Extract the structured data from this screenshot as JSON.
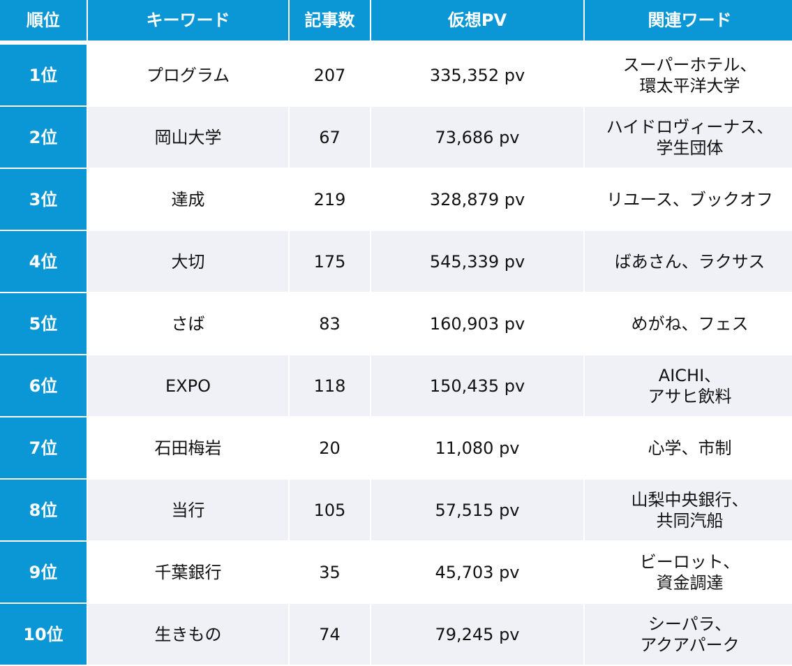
{
  "headers": {
    "rank": "順位",
    "keyword": "キーワード",
    "articles": "記事数",
    "pv": "仮想PV",
    "related": "関連ワード"
  },
  "rows": [
    {
      "rank": "1位",
      "keyword": "プログラム",
      "articles": "207",
      "pv": "335,352 pv",
      "related": "スーパーホテル、\n環太平洋大学"
    },
    {
      "rank": "2位",
      "keyword": "岡山大学",
      "articles": "67",
      "pv": "73,686 pv",
      "related": "ハイドロヴィーナス、\n学生団体"
    },
    {
      "rank": "3位",
      "keyword": "達成",
      "articles": "219",
      "pv": "328,879 pv",
      "related": "リユース、ブックオフ"
    },
    {
      "rank": "4位",
      "keyword": "大切",
      "articles": "175",
      "pv": "545,339 pv",
      "related": "ばあさん、ラクサス"
    },
    {
      "rank": "5位",
      "keyword": "さば",
      "articles": "83",
      "pv": "160,903 pv",
      "related": "めがね、フェス"
    },
    {
      "rank": "6位",
      "keyword": "EXPO",
      "articles": "118",
      "pv": "150,435 pv",
      "related": "AICHI、\nアサヒ飲料"
    },
    {
      "rank": "7位",
      "keyword": "石田梅岩",
      "articles": "20",
      "pv": "11,080 pv",
      "related": "心学、市制"
    },
    {
      "rank": "8位",
      "keyword": "当行",
      "articles": "105",
      "pv": "57,515 pv",
      "related": "山梨中央銀行、\n共同汽船"
    },
    {
      "rank": "9位",
      "keyword": "千葉銀行",
      "articles": "35",
      "pv": "45,703 pv",
      "related": "ビーロット、\n資金調達"
    },
    {
      "rank": "10位",
      "keyword": "生きもの",
      "articles": "74",
      "pv": "79,245 pv",
      "related": "シーパラ、\nアクアパーク"
    }
  ],
  "colors": {
    "header_bg": "#0b97d6",
    "header_text": "#ffffff",
    "row_alt_bg": "#f0f1f6"
  }
}
